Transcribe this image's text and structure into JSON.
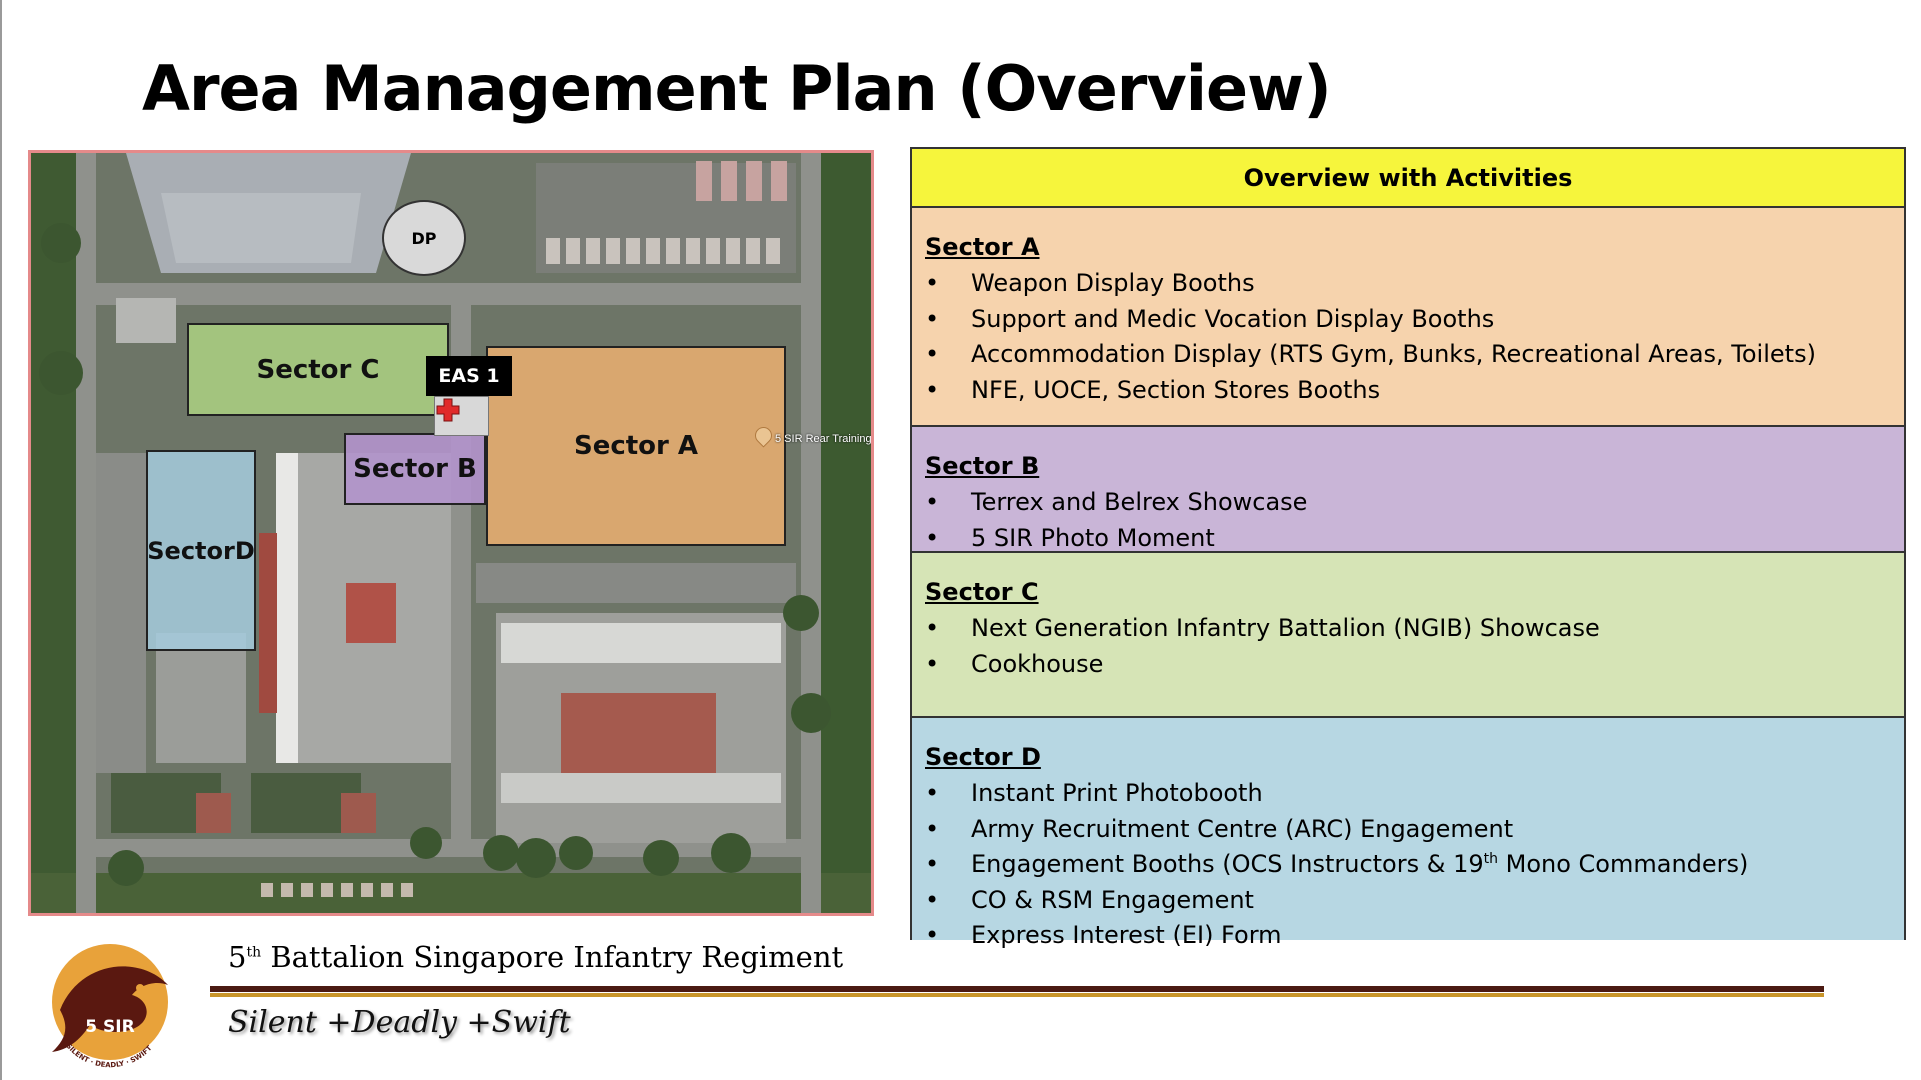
{
  "title": "Area Management Plan (Overview)",
  "map": {
    "sectors": {
      "a": "Sector A",
      "b": "Sector B",
      "c": "Sector C",
      "d_line1": "Sector",
      "d_line2": "D"
    },
    "dp_label": "DP",
    "eas_label": "EAS 1",
    "eas_icon": "medical-cross-icon",
    "pin_label": "5 SIR Rear Training",
    "colors": {
      "sector_a": "#f0b272",
      "sector_b": "#b394cc",
      "sector_c": "#add282",
      "sector_d": "#a6ccde",
      "medical": "#e02b2b"
    }
  },
  "table": {
    "header": "Overview with Activities",
    "header_color": "#f6f53c",
    "sections": [
      {
        "title": "Sector A",
        "color": "#f6d3ad",
        "items": [
          "Weapon Display Booths",
          "Support and Medic Vocation Display Booths",
          "Accommodation Display (RTS Gym, Bunks, Recreational Areas, Toilets)",
          "NFE, UOCE, Section Stores Booths"
        ]
      },
      {
        "title": "Sector B",
        "color": "#c9b5d7",
        "items": [
          "Terrex and Belrex Showcase",
          "5 SIR Photo Moment"
        ]
      },
      {
        "title": "Sector C",
        "color": "#d6e4b6",
        "items": [
          "Next Generation Infantry Battalion (NGIB) Showcase",
          "Cookhouse"
        ]
      },
      {
        "title": "Sector D",
        "color": "#b7d7e3",
        "items": [
          "Instant Print Photobooth",
          "Army Recruitment Centre (ARC) Engagement",
          {
            "before": "Engagement Booths (OCS Instructors & 19",
            "sup": "th",
            "after": " Mono Commanders)"
          },
          "CO & RSM Engagement",
          "Express Interest (EI) Form"
        ]
      }
    ]
  },
  "footer": {
    "unit_number": "5",
    "unit_sup": "th",
    "unit_rest": " Battalion Singapore Infantry Regiment",
    "motto": "Silent +Deadly +Swift",
    "logo": {
      "icon": "5sir-manta-ray-logo",
      "text": "5 SIR",
      "ring_text": "SILENT · DEADLY · SWIFT"
    },
    "rule_colors": [
      "#4b1a12",
      "#c9952a"
    ]
  }
}
